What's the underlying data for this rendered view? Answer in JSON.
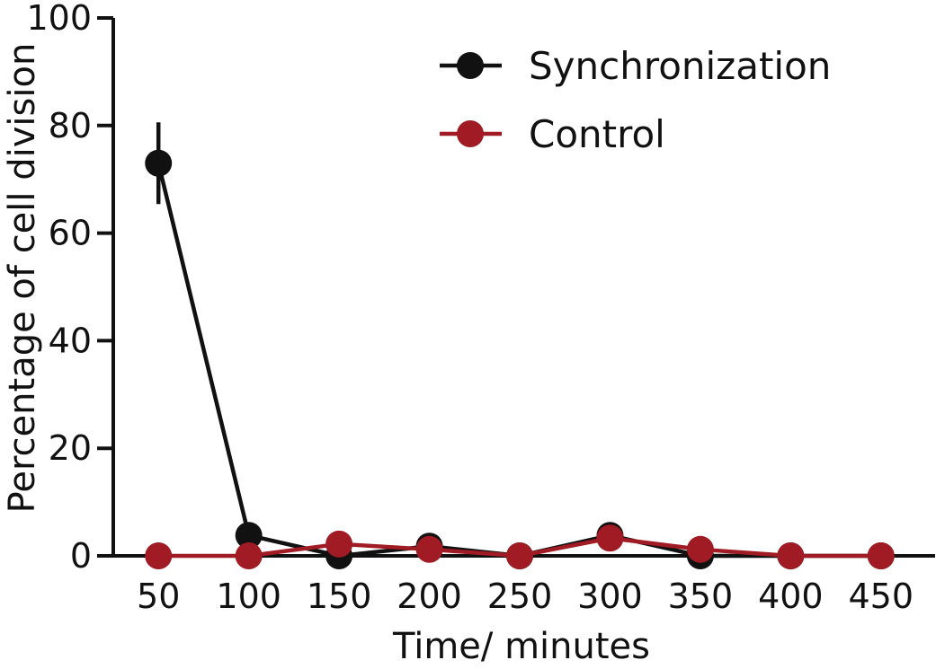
{
  "chart_data": {
    "type": "line",
    "title": "",
    "xlabel": "Time/ minutes",
    "ylabel": "Percentage of cell division",
    "x": [
      50,
      100,
      150,
      200,
      250,
      300,
      350,
      400,
      450
    ],
    "xticks": [
      "50",
      "100",
      "150",
      "200",
      "250",
      "300",
      "350",
      "400",
      "450"
    ],
    "yticks": [
      "0",
      "20",
      "40",
      "60",
      "80",
      "100"
    ],
    "ylim": [
      0,
      100
    ],
    "grid": false,
    "legend_position": "top-right",
    "series": [
      {
        "name": "Synchronization",
        "color": "#111111",
        "values": [
          73,
          3.8,
          0,
          1.8,
          0,
          3.8,
          0,
          0,
          0
        ],
        "error": [
          7.6,
          0,
          0,
          0,
          0,
          0,
          0,
          0,
          0
        ]
      },
      {
        "name": "Control",
        "color": "#a01b24",
        "values": [
          0,
          0,
          2.2,
          1.2,
          0,
          3.3,
          1.2,
          0,
          0
        ],
        "error": [
          0,
          0,
          0,
          0,
          0,
          0,
          0,
          0,
          0
        ]
      }
    ]
  }
}
